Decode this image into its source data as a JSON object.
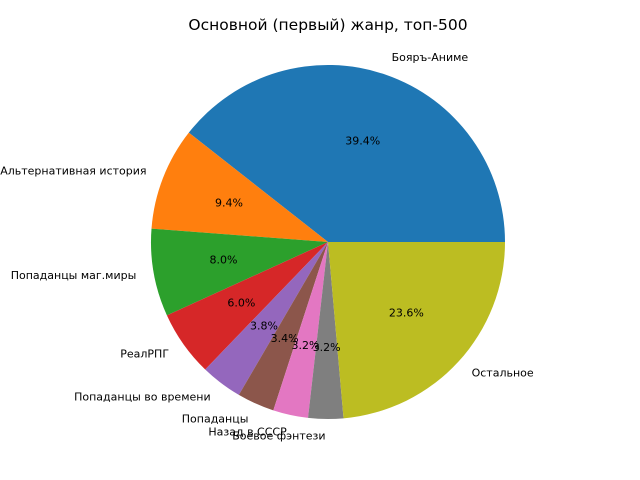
{
  "chart_data": {
    "type": "pie",
    "title": "Основной (первый) жанр, топ-500",
    "start_angle_deg": 0,
    "direction": "counterclockwise",
    "slices": [
      {
        "label": "Бояръ-Аниме",
        "value": 39.4,
        "pct_label": "39.4%",
        "color": "#1f77b4"
      },
      {
        "label": "Альтернативная история",
        "value": 9.4,
        "pct_label": "9.4%",
        "color": "#ff7f0e"
      },
      {
        "label": "Попаданцы маг.миры",
        "value": 8.0,
        "pct_label": "8.0%",
        "color": "#2ca02c"
      },
      {
        "label": "РеалРПГ",
        "value": 6.0,
        "pct_label": "6.0%",
        "color": "#d62728"
      },
      {
        "label": "Попаданцы во времени",
        "value": 3.8,
        "pct_label": "3.8%",
        "color": "#9467bd"
      },
      {
        "label": "Попаданцы",
        "value": 3.4,
        "pct_label": "3.4%",
        "color": "#8c564b"
      },
      {
        "label": "Назад в СССР",
        "value": 3.2,
        "pct_label": "3.2%",
        "color": "#e377c2"
      },
      {
        "label": "Боевое фэнтези",
        "value": 3.2,
        "pct_label": "3.2%",
        "color": "#7f7f7f"
      },
      {
        "label": "Остальное",
        "value": 23.6,
        "pct_label": "23.6%",
        "color": "#bcbd22"
      }
    ]
  }
}
